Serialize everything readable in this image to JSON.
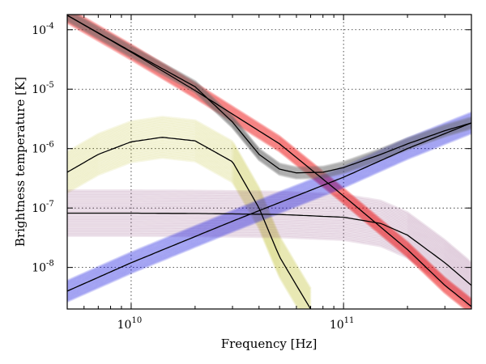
{
  "chart_data": {
    "type": "line",
    "xlabel": "Frequency [Hz]",
    "ylabel": "Brightness temperature [K]",
    "x_scale": "log",
    "y_scale": "log",
    "xlim": [
      5000000000.0,
      400000000000.0
    ],
    "ylim": [
      2e-09,
      0.00018
    ],
    "grid": true,
    "x_ticks": [
      {
        "value": 10000000000.0,
        "base": "10",
        "exp": "10"
      },
      {
        "value": 100000000000.0,
        "base": "10",
        "exp": "11"
      }
    ],
    "y_ticks": [
      {
        "value": 1e-08,
        "base": "10",
        "exp": "-8"
      },
      {
        "value": 1e-07,
        "base": "10",
        "exp": "-7"
      },
      {
        "value": 1e-06,
        "base": "10",
        "exp": "-6"
      },
      {
        "value": 1e-05,
        "base": "10",
        "exp": "-5"
      },
      {
        "value": 0.0001,
        "base": "10",
        "exp": "-4"
      }
    ],
    "series": [
      {
        "color": "#bbbb22",
        "x": [
          5000000000.0,
          7000000000.0,
          10000000000.0,
          14000000000.0,
          20000000000.0,
          30000000000.0,
          40000000000.0,
          50000000000.0,
          60000000000.0,
          70000000000.0
        ],
        "y": [
          4e-07,
          8e-07,
          1.3e-06,
          1.55e-06,
          1.35e-06,
          6e-07,
          1e-07,
          1.5e-08,
          5e-09,
          2e-09
        ],
        "band": 2.2
      },
      {
        "color": "#7a2a6a",
        "x": [
          5000000000.0,
          10000000000.0,
          20000000000.0,
          50000000000.0,
          100000000000.0,
          150000000000.0,
          200000000000.0,
          300000000000.0,
          400000000000.0
        ],
        "y": [
          8.2e-08,
          8.2e-08,
          8.1e-08,
          7.8e-08,
          7e-08,
          5.5e-08,
          3.5e-08,
          1.2e-08,
          5e-09
        ],
        "band": 2.4
      },
      {
        "color": "#ee0000",
        "x": [
          5000000000.0,
          10000000000.0,
          20000000000.0,
          50000000000.0,
          100000000000.0,
          200000000000.0,
          300000000000.0,
          400000000000.0
        ],
        "y": [
          0.000175,
          4.2e-05,
          9.5e-06,
          1.2e-06,
          1.6e-07,
          2e-08,
          5e-09,
          2.2e-09
        ],
        "band": 1.35
      },
      {
        "color": "#0000dd",
        "x": [
          5000000000.0,
          10000000000.0,
          30000000000.0,
          100000000000.0,
          200000000000.0,
          400000000000.0
        ],
        "y": [
          4e-09,
          1.2e-08,
          6e-08,
          3.3e-07,
          1e-06,
          2.7e-06
        ],
        "band": 1.5
      },
      {
        "color": "#6e6e6e",
        "x": [
          5000000000.0,
          10000000000.0,
          20000000000.0,
          30000000000.0,
          40000000000.0,
          50000000000.0,
          60000000000.0,
          80000000000.0,
          100000000000.0,
          150000000000.0,
          200000000000.0,
          300000000000.0,
          400000000000.0
        ],
        "y": [
          0.000175,
          4.3e-05,
          1.1e-05,
          2.8e-06,
          8e-07,
          4.5e-07,
          3.9e-07,
          4e-07,
          4.8e-07,
          8e-07,
          1.2e-06,
          2e-06,
          2.7e-06
        ],
        "band": 1.25
      }
    ]
  }
}
